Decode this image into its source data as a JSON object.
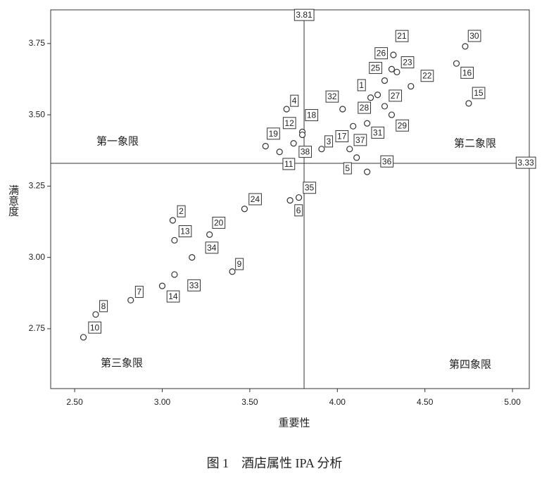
{
  "chart_data": {
    "type": "scatter",
    "title": "图 1　酒店属性 IPA 分析",
    "x_label": "重要性",
    "y_label": "满意度",
    "xlim": [
      2.363,
      5.096
    ],
    "ylim": [
      2.54,
      3.868
    ],
    "xticks": [
      {
        "value": 2.5,
        "label": "2.50"
      },
      {
        "value": 3,
        "label": "3.00"
      },
      {
        "value": 3.5,
        "label": "3.50"
      },
      {
        "value": 4,
        "label": "4.00"
      },
      {
        "value": 4.5,
        "label": "4.50"
      },
      {
        "value": 5,
        "label": "5.00"
      }
    ],
    "yticks": [
      {
        "value": 2.75,
        "label": "2.75"
      },
      {
        "value": 3,
        "label": "3.00"
      },
      {
        "value": 3.25,
        "label": "3.25"
      },
      {
        "value": 3.5,
        "label": "3.50"
      },
      {
        "value": 3.75,
        "label": "3.75"
      }
    ],
    "vline": 3.81,
    "hline": 3.33,
    "annotations": [
      "第一象限",
      "第二象限",
      "第三象限",
      "第四象限"
    ],
    "color": "#333333",
    "points": [
      {
        "label": "30",
        "x": 4.73,
        "y": 3.74
      },
      {
        "label": "16",
        "x": 4.68,
        "y": 3.68
      },
      {
        "label": "15",
        "x": 4.75,
        "y": 3.54
      },
      {
        "label": "21",
        "x": 4.32,
        "y": 3.71
      },
      {
        "label": "26",
        "x": 4.27,
        "y": 3.62
      },
      {
        "label": "23",
        "x": 4.34,
        "y": 3.65
      },
      {
        "label": "25",
        "x": 4.31,
        "y": 3.66
      },
      {
        "label": "22",
        "x": 4.42,
        "y": 3.6
      },
      {
        "label": "27",
        "x": 4.23,
        "y": 3.57
      },
      {
        "label": "1",
        "x": 4.19,
        "y": 3.56
      },
      {
        "label": "32",
        "x": 4.03,
        "y": 3.52
      },
      {
        "label": "28",
        "x": 4.27,
        "y": 3.53
      },
      {
        "label": "29",
        "x": 4.31,
        "y": 3.5
      },
      {
        "label": "31",
        "x": 4.17,
        "y": 3.47
      },
      {
        "label": "17",
        "x": 4.09,
        "y": 3.46
      },
      {
        "label": "37",
        "x": 4.07,
        "y": 3.38
      },
      {
        "label": "5",
        "x": 4.11,
        "y": 3.35
      },
      {
        "label": "36",
        "x": 4.17,
        "y": 3.3
      },
      {
        "label": "3",
        "x": 3.91,
        "y": 3.38
      },
      {
        "label": "4",
        "x": 3.71,
        "y": 3.52
      },
      {
        "label": "18",
        "x": 3.8,
        "y": 3.44
      },
      {
        "label": "38",
        "x": 3.8,
        "y": 3.43
      },
      {
        "label": "12",
        "x": 3.75,
        "y": 3.4
      },
      {
        "label": "11",
        "x": 3.67,
        "y": 3.37
      },
      {
        "label": "19",
        "x": 3.59,
        "y": 3.39
      },
      {
        "label": "35",
        "x": 3.78,
        "y": 3.21
      },
      {
        "label": "6",
        "x": 3.73,
        "y": 3.2
      },
      {
        "label": "24",
        "x": 3.47,
        "y": 3.17
      },
      {
        "label": "20",
        "x": 3.27,
        "y": 3.08
      },
      {
        "label": "2",
        "x": 3.06,
        "y": 3.13
      },
      {
        "label": "13",
        "x": 3.07,
        "y": 3.06
      },
      {
        "label": "34",
        "x": 3.17,
        "y": 3.0
      },
      {
        "label": "9",
        "x": 3.4,
        "y": 2.95
      },
      {
        "label": "14",
        "x": 3.07,
        "y": 2.94
      },
      {
        "label": "33",
        "x": 3.0,
        "y": 2.9
      },
      {
        "label": "7",
        "x": 2.82,
        "y": 2.85
      },
      {
        "label": "8",
        "x": 2.62,
        "y": 2.8
      },
      {
        "label": "10",
        "x": 2.55,
        "y": 2.72
      }
    ]
  }
}
